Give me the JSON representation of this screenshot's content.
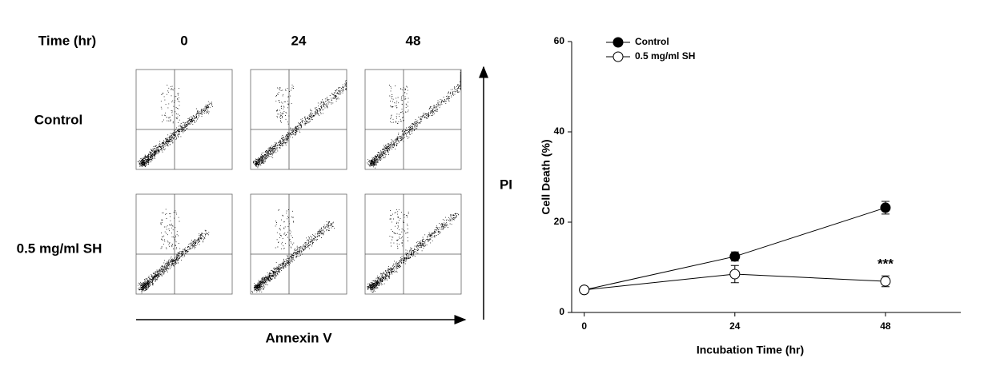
{
  "flow_panel": {
    "column_header_label": "Time (hr)",
    "time_points": [
      "0",
      "24",
      "48"
    ],
    "row_labels": [
      "Control",
      "0.5 mg/ml SH"
    ],
    "x_axis_label": "Annexin V",
    "y_axis_label": "PI"
  },
  "chart_data": {
    "type": "line",
    "xlabel": "Incubation Time (hr)",
    "ylabel": "Cell Death (%)",
    "x": [
      0,
      24,
      48
    ],
    "xlim": [
      -2,
      60
    ],
    "xticks": [
      0,
      24,
      48
    ],
    "ylim": [
      0,
      60
    ],
    "yticks": [
      0,
      20,
      40,
      60
    ],
    "series": [
      {
        "name": "Control",
        "color": "#000000",
        "marker": "filled",
        "values": [
          5,
          12.4,
          23.2
        ],
        "errors": [
          0,
          1,
          1.4
        ]
      },
      {
        "name": "0.5 mg/ml SH",
        "color": "#000000",
        "marker": "open",
        "values": [
          5,
          8.5,
          6.9
        ],
        "errors": [
          0,
          1.9,
          1.2
        ]
      }
    ],
    "annotations": [
      {
        "text": "***",
        "x": 48
      }
    ],
    "legend": "upper left"
  }
}
